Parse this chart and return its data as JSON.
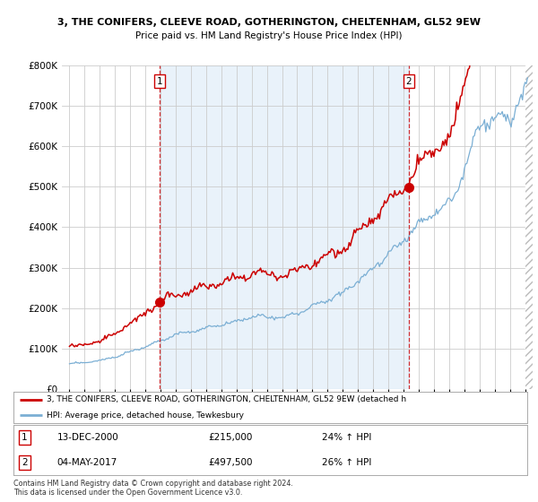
{
  "title_line1": "3, THE CONIFERS, CLEEVE ROAD, GOTHERINGTON, CHELTENHAM, GL52 9EW",
  "title_line2": "Price paid vs. HM Land Registry's House Price Index (HPI)",
  "ylim": [
    0,
    800000
  ],
  "yticks": [
    0,
    100000,
    200000,
    300000,
    400000,
    500000,
    600000,
    700000,
    800000
  ],
  "sale1_date_label": "13-DEC-2000",
  "sale1_price": 215000,
  "sale1_price_label": "£215,000",
  "sale1_hpi_label": "24% ↑ HPI",
  "sale1_x": 2000.96,
  "sale2_date_label": "04-MAY-2017",
  "sale2_price": 497500,
  "sale2_price_label": "£497,500",
  "sale2_hpi_label": "26% ↑ HPI",
  "sale2_x": 2017.34,
  "legend_line1": "3, THE CONIFERS, CLEEVE ROAD, GOTHERINGTON, CHELTENHAM, GL52 9EW (detached h",
  "legend_line2": "HPI: Average price, detached house, Tewkesbury",
  "footer_line1": "Contains HM Land Registry data © Crown copyright and database right 2024.",
  "footer_line2": "This data is licensed under the Open Government Licence v3.0.",
  "hpi_color": "#7bafd4",
  "price_color": "#cc0000",
  "sale_marker_color": "#cc0000",
  "vline_color": "#cc0000",
  "background_color": "#ffffff",
  "plot_bg_color": "#ffffff",
  "highlight_bg_color": "#ddeeff",
  "xmin": 1995,
  "xmax": 2025
}
